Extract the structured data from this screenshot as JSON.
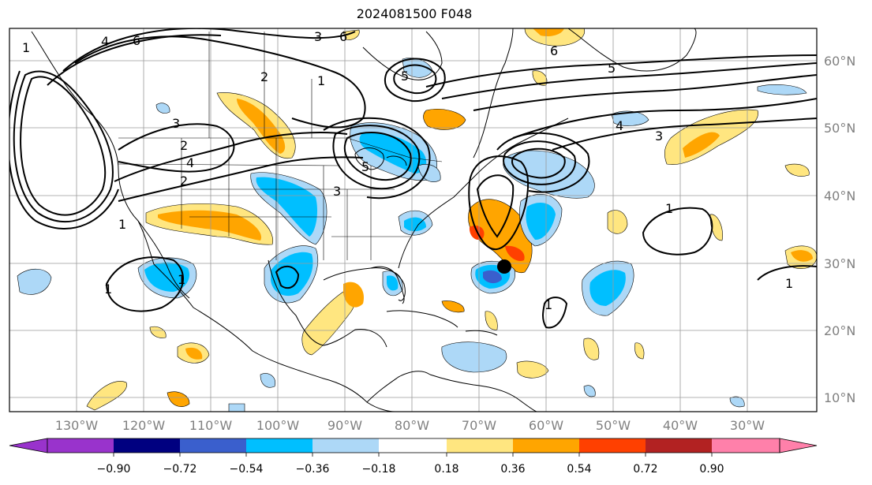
{
  "title": "2024081500 F048",
  "map": {
    "lon_labels": [
      "130°W",
      "120°W",
      "110°W",
      "100°W",
      "90°W",
      "80°W",
      "70°W",
      "60°W",
      "50°W",
      "40°W",
      "30°W"
    ],
    "lat_labels": [
      "60°N",
      "50°N",
      "40°N",
      "30°N",
      "20°N",
      "10°N"
    ],
    "grid_color": "#9a9a9a",
    "axis_label_color": "#808080",
    "contour_labels": [
      "1",
      "1",
      "1",
      "1",
      "1",
      "1",
      "1",
      "1",
      "2",
      "2",
      "2",
      "3",
      "3",
      "3",
      "3",
      "4",
      "4",
      "4",
      "5",
      "5",
      "5",
      "6",
      "6",
      "6"
    ],
    "storm_marker": "black dot near 66°W 30°N"
  },
  "colorbar": {
    "tick_labels": [
      "−0.90",
      "−0.72",
      "−0.54",
      "−0.36",
      "−0.18",
      "0.18",
      "0.36",
      "0.54",
      "0.72",
      "0.90"
    ],
    "colors": [
      "#9933cc",
      "#000080",
      "#3a5fcd",
      "#00bfff",
      "#add8f7",
      "#ffffff",
      "#ffe680",
      "#ffa500",
      "#ff4000",
      "#b22222",
      "#ff80aa"
    ]
  }
}
